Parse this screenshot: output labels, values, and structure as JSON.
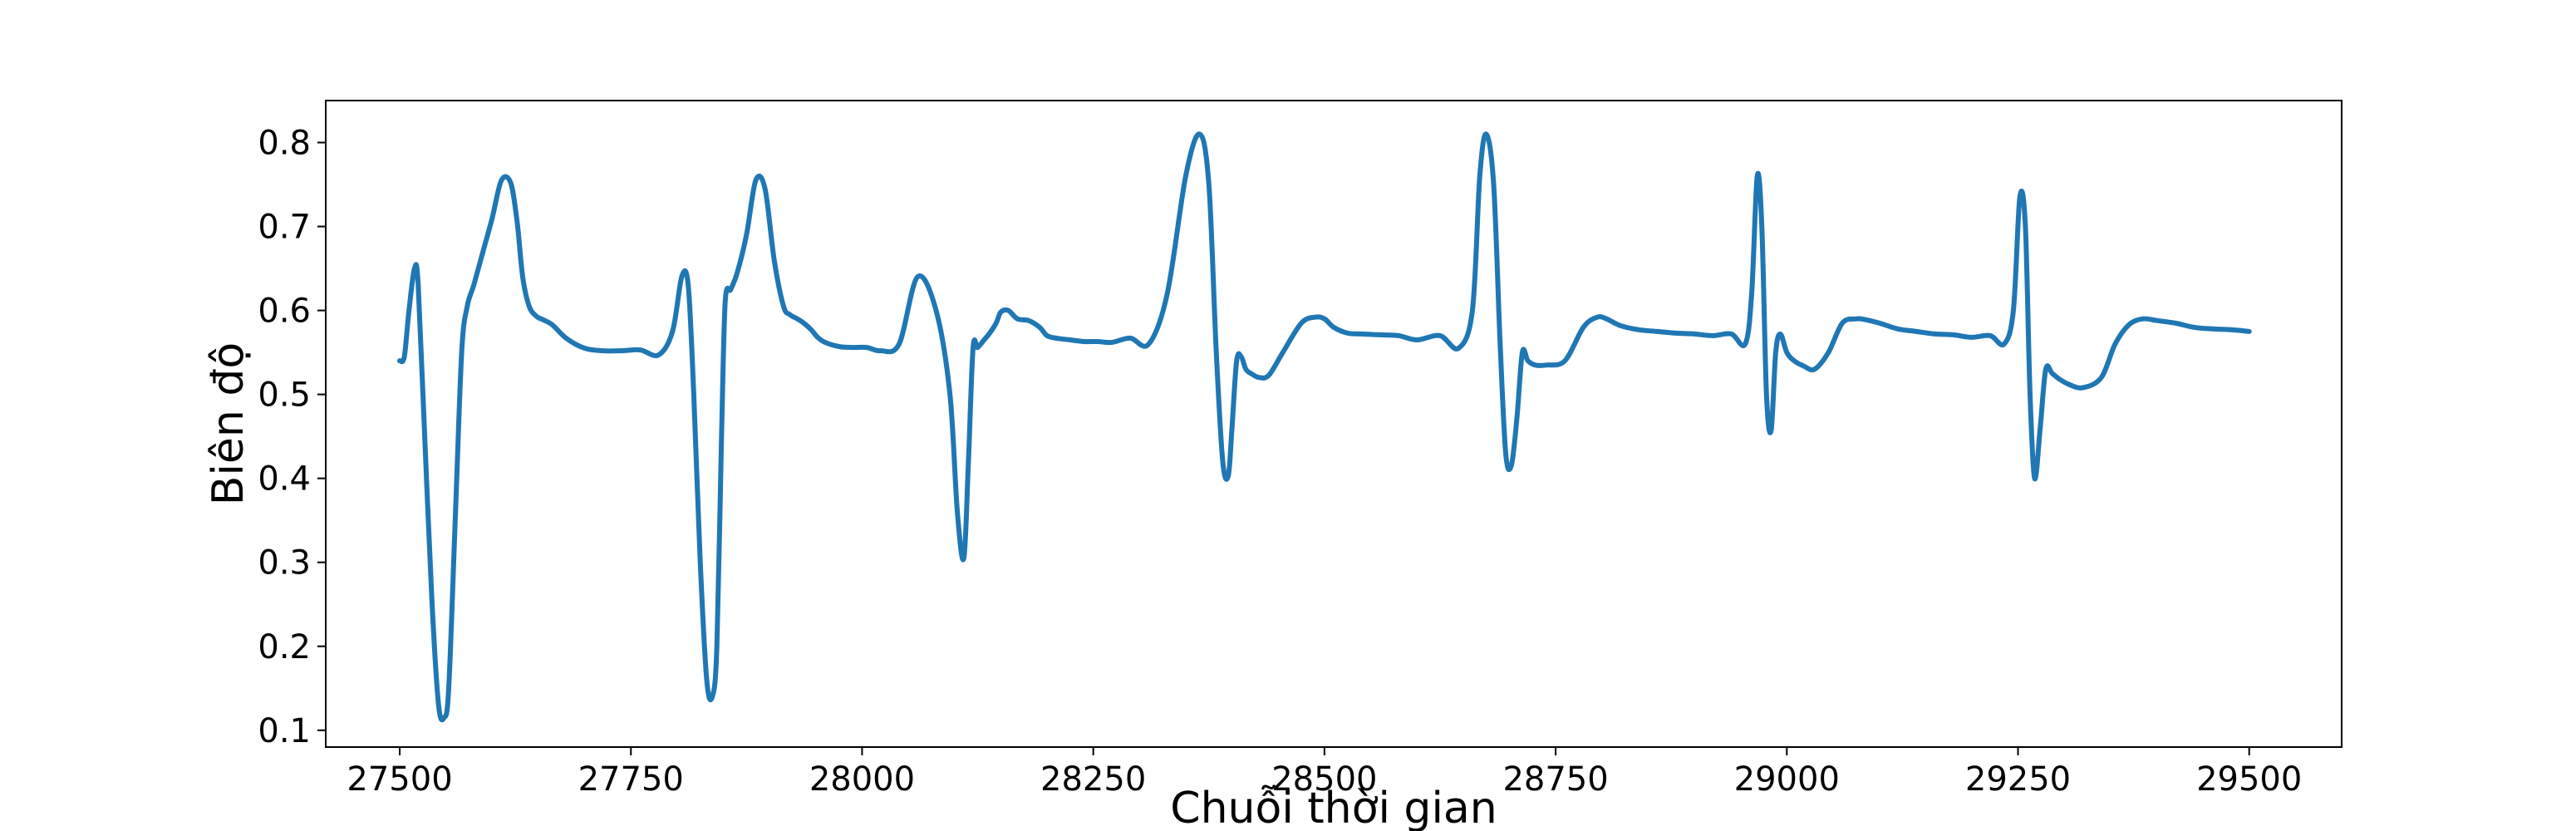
{
  "chart_data": {
    "type": "line",
    "title": "",
    "xlabel": "Chuỗi thời gian",
    "ylabel": "Biên độ",
    "xlim": [
      27420,
      29600
    ],
    "ylim": [
      0.08,
      0.85
    ],
    "xticks": [
      27500,
      27750,
      28000,
      28250,
      28500,
      28750,
      29000,
      29250,
      29500
    ],
    "xtick_labels": [
      "27500",
      "27750",
      "28000",
      "28250",
      "28500",
      "28750",
      "29000",
      "29250",
      "29500"
    ],
    "yticks": [
      0.1,
      0.2,
      0.3,
      0.4,
      0.5,
      0.6,
      0.7,
      0.8
    ],
    "ytick_labels": [
      "0.1",
      "0.2",
      "0.3",
      "0.4",
      "0.5",
      "0.6",
      "0.7",
      "0.8"
    ],
    "grid": false,
    "legend": "none",
    "line_color": "#1f77b4",
    "series": [
      {
        "x": [
          27500,
          27505,
          27510,
          27516,
          27520,
          27527,
          27535,
          27542,
          27548,
          27553,
          27560,
          27567,
          27573,
          27580,
          27590,
          27600,
          27610,
          27620,
          27627,
          27633,
          27640,
          27648,
          27655,
          27665,
          27680,
          27700,
          27720,
          27740,
          27760,
          27780,
          27795,
          27805,
          27812,
          27818,
          27825,
          27832,
          27838,
          27843,
          27848,
          27852,
          27858,
          27865,
          27875,
          27885,
          27895,
          27905,
          27915,
          27922,
          27930,
          27937,
          27945,
          27952,
          27960,
          27975,
          27990,
          28005,
          28020,
          28040,
          28060,
          28080,
          28095,
          28103,
          28110,
          28115,
          28120,
          28125,
          28132,
          28138,
          28145,
          28150,
          28158,
          28168,
          28180,
          28192,
          28200,
          28210,
          28225,
          28240,
          28255,
          28270,
          28290,
          28310,
          28330,
          28350,
          28365,
          28375,
          28383,
          28390,
          28396,
          28400,
          28405,
          28410,
          28415,
          28422,
          28430,
          28440,
          28455,
          28475,
          28490,
          28500,
          28510,
          28525,
          28540,
          28560,
          28580,
          28600,
          28625,
          28645,
          28660,
          28668,
          28675,
          28683,
          28690,
          28696,
          28702,
          28708,
          28714,
          28720,
          28728,
          28740,
          28760,
          28780,
          28795,
          28805,
          28820,
          28840,
          28860,
          28880,
          28900,
          28920,
          28940,
          28955,
          28962,
          28968,
          28973,
          28978,
          28983,
          28988,
          28993,
          29000,
          29008,
          29018,
          29030,
          29045,
          29060,
          29075,
          29085,
          29100,
          29120,
          29140,
          29160,
          29180,
          29200,
          29220,
          29235,
          29245,
          29252,
          29258,
          29263,
          29268,
          29274,
          29280,
          29287,
          29295,
          29305,
          29320,
          29340,
          29355,
          29370,
          29385,
          29400,
          29420,
          29440,
          29460,
          29480,
          29500
        ],
        "y": [
          0.54,
          0.545,
          0.6,
          0.65,
          0.63,
          0.45,
          0.25,
          0.13,
          0.115,
          0.15,
          0.35,
          0.55,
          0.605,
          0.63,
          0.67,
          0.71,
          0.755,
          0.752,
          0.705,
          0.64,
          0.605,
          0.593,
          0.589,
          0.583,
          0.567,
          0.555,
          0.552,
          0.552,
          0.553,
          0.547,
          0.575,
          0.64,
          0.63,
          0.5,
          0.3,
          0.16,
          0.14,
          0.2,
          0.45,
          0.61,
          0.625,
          0.645,
          0.69,
          0.755,
          0.745,
          0.66,
          0.605,
          0.595,
          0.59,
          0.585,
          0.577,
          0.568,
          0.562,
          0.557,
          0.556,
          0.556,
          0.552,
          0.56,
          0.64,
          0.6,
          0.5,
          0.36,
          0.305,
          0.42,
          0.555,
          0.556,
          0.565,
          0.573,
          0.585,
          0.598,
          0.6,
          0.59,
          0.588,
          0.58,
          0.57,
          0.567,
          0.565,
          0.563,
          0.563,
          0.562,
          0.567,
          0.56,
          0.62,
          0.76,
          0.81,
          0.75,
          0.55,
          0.42,
          0.403,
          0.46,
          0.54,
          0.545,
          0.53,
          0.524,
          0.52,
          0.523,
          0.55,
          0.585,
          0.592,
          0.59,
          0.58,
          0.573,
          0.572,
          0.571,
          0.57,
          0.565,
          0.57,
          0.555,
          0.6,
          0.76,
          0.81,
          0.75,
          0.56,
          0.43,
          0.415,
          0.47,
          0.55,
          0.54,
          0.535,
          0.535,
          0.54,
          0.58,
          0.592,
          0.59,
          0.582,
          0.577,
          0.575,
          0.573,
          0.572,
          0.57,
          0.572,
          0.56,
          0.62,
          0.76,
          0.7,
          0.5,
          0.457,
          0.55,
          0.572,
          0.55,
          0.54,
          0.534,
          0.53,
          0.55,
          0.585,
          0.59,
          0.589,
          0.585,
          0.578,
          0.575,
          0.572,
          0.571,
          0.568,
          0.57,
          0.56,
          0.6,
          0.735,
          0.7,
          0.5,
          0.4,
          0.46,
          0.53,
          0.525,
          0.518,
          0.512,
          0.508,
          0.52,
          0.56,
          0.583,
          0.59,
          0.588,
          0.585,
          0.58,
          0.578,
          0.577,
          0.575
        ]
      }
    ]
  }
}
